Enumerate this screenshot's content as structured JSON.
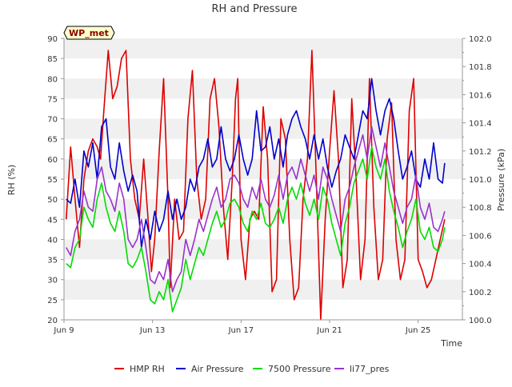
{
  "chart_data": {
    "type": "line",
    "title": "RH and Pressure",
    "badge": "WP_met",
    "xlabel": "Time",
    "ylabel_left": "RH (%)",
    "ylabel_right": "Pressure (kPa)",
    "xlim": [
      0.0,
      18.0
    ],
    "ylim_left": [
      20,
      90
    ],
    "ylim_right": [
      100.0,
      102.0
    ],
    "x_ticks": [
      {
        "value": 0,
        "label": "Jun 9"
      },
      {
        "value": 4,
        "label": "Jun 13"
      },
      {
        "value": 8,
        "label": "Jun 17"
      },
      {
        "value": 12,
        "label": "Jun 21"
      },
      {
        "value": 16,
        "label": "Jun 25"
      }
    ],
    "y_ticks_left": [
      20,
      25,
      30,
      35,
      40,
      45,
      50,
      55,
      60,
      65,
      70,
      75,
      80,
      85,
      90
    ],
    "y_ticks_right": [
      {
        "value": 100.0,
        "label": "100.0"
      },
      {
        "value": 100.2,
        "label": "100.2"
      },
      {
        "value": 100.4,
        "label": "100.4"
      },
      {
        "value": 100.6,
        "label": "100.6"
      },
      {
        "value": 100.8,
        "label": "100.8"
      },
      {
        "value": 101.0,
        "label": "101.0"
      },
      {
        "value": 101.2,
        "label": "101.2"
      },
      {
        "value": 101.4,
        "label": "101.4"
      },
      {
        "value": 101.6,
        "label": "101.6"
      },
      {
        "value": 101.8,
        "label": "101.8"
      },
      {
        "value": 102.0,
        "label": "102.0"
      }
    ],
    "grid": "horizontal bands",
    "legend_position": "bottom",
    "series": [
      {
        "name": "HMP RH",
        "color": "#dd0000",
        "axis": "left",
        "x": [
          0.1,
          0.3,
          0.5,
          0.7,
          0.9,
          1.1,
          1.3,
          1.5,
          1.65,
          1.8,
          2.0,
          2.2,
          2.4,
          2.6,
          2.8,
          3.0,
          3.2,
          3.4,
          3.6,
          3.8,
          3.95,
          4.1,
          4.3,
          4.5,
          4.7,
          4.8,
          5.0,
          5.2,
          5.4,
          5.6,
          5.8,
          6.0,
          6.2,
          6.4,
          6.6,
          6.8,
          7.0,
          7.2,
          7.4,
          7.6,
          7.75,
          7.85,
          8.0,
          8.2,
          8.4,
          8.6,
          8.8,
          9.0,
          9.2,
          9.4,
          9.6,
          9.8,
          10.0,
          10.2,
          10.4,
          10.6,
          10.8,
          11.0,
          11.2,
          11.4,
          11.6,
          11.8,
          12.0,
          12.2,
          12.4,
          12.6,
          12.8,
          13.0,
          13.2,
          13.4,
          13.6,
          13.8,
          14.0,
          14.2,
          14.4,
          14.6,
          14.8,
          15.0,
          15.2,
          15.4,
          15.6,
          15.8,
          16.0,
          16.2,
          16.4,
          16.6,
          16.8,
          17.0,
          17.2
        ],
        "y": [
          45,
          63,
          50,
          38,
          55,
          62,
          65,
          63,
          60,
          72,
          87,
          75,
          78,
          85,
          87,
          60,
          50,
          45,
          60,
          45,
          32,
          40,
          62,
          80,
          50,
          28,
          50,
          40,
          42,
          70,
          82,
          55,
          45,
          50,
          75,
          80,
          68,
          48,
          35,
          55,
          75,
          80,
          40,
          30,
          45,
          47,
          45,
          73,
          60,
          27,
          30,
          70,
          65,
          40,
          25,
          28,
          50,
          60,
          87,
          55,
          20,
          45,
          62,
          77,
          60,
          28,
          35,
          75,
          55,
          30,
          40,
          80,
          48,
          30,
          35,
          65,
          74,
          40,
          30,
          35,
          72,
          80,
          35,
          32,
          28,
          30,
          35,
          40,
          45
        ]
      },
      {
        "name": "Air Pressure",
        "color": "#0000cc",
        "axis": "left",
        "x": [
          0.1,
          0.3,
          0.5,
          0.7,
          0.9,
          1.1,
          1.3,
          1.5,
          1.7,
          1.9,
          2.1,
          2.3,
          2.5,
          2.7,
          2.9,
          3.1,
          3.3,
          3.5,
          3.7,
          3.9,
          4.1,
          4.3,
          4.5,
          4.7,
          4.9,
          5.1,
          5.3,
          5.5,
          5.7,
          5.9,
          6.1,
          6.3,
          6.5,
          6.7,
          6.9,
          7.1,
          7.3,
          7.5,
          7.7,
          7.9,
          8.1,
          8.3,
          8.5,
          8.7,
          8.9,
          9.1,
          9.3,
          9.5,
          9.7,
          9.9,
          10.1,
          10.3,
          10.5,
          10.7,
          10.9,
          11.1,
          11.3,
          11.5,
          11.7,
          11.9,
          12.1,
          12.3,
          12.5,
          12.7,
          12.9,
          13.1,
          13.3,
          13.5,
          13.7,
          13.9,
          14.1,
          14.3,
          14.5,
          14.7,
          14.9,
          15.1,
          15.3,
          15.5,
          15.7,
          15.9,
          16.1,
          16.3,
          16.5,
          16.7,
          16.9,
          17.1,
          17.2
        ],
        "y": [
          50,
          49,
          55,
          48,
          62,
          58,
          64,
          55,
          68,
          70,
          58,
          55,
          64,
          57,
          52,
          56,
          52,
          38,
          45,
          40,
          47,
          42,
          45,
          52,
          45,
          50,
          45,
          48,
          55,
          52,
          58,
          60,
          65,
          58,
          60,
          68,
          60,
          57,
          60,
          66,
          60,
          56,
          60,
          72,
          62,
          63,
          68,
          60,
          65,
          58,
          66,
          70,
          72,
          68,
          65,
          60,
          66,
          60,
          65,
          58,
          53,
          57,
          60,
          66,
          63,
          60,
          66,
          72,
          70,
          80,
          72,
          66,
          72,
          75,
          70,
          62,
          55,
          58,
          62,
          55,
          53,
          60,
          55,
          64,
          55,
          54,
          59
        ]
      },
      {
        "name": "7500 Pressure",
        "color": "#00dd00",
        "axis": "left",
        "x": [
          0.1,
          0.3,
          0.5,
          0.7,
          0.9,
          1.1,
          1.3,
          1.5,
          1.7,
          1.9,
          2.1,
          2.3,
          2.5,
          2.7,
          2.9,
          3.1,
          3.3,
          3.5,
          3.7,
          3.9,
          4.1,
          4.3,
          4.5,
          4.7,
          4.9,
          5.1,
          5.3,
          5.5,
          5.7,
          5.9,
          6.1,
          6.3,
          6.5,
          6.7,
          6.9,
          7.1,
          7.3,
          7.5,
          7.7,
          7.9,
          8.1,
          8.3,
          8.5,
          8.7,
          8.9,
          9.1,
          9.3,
          9.5,
          9.7,
          9.9,
          10.1,
          10.3,
          10.5,
          10.7,
          10.9,
          11.1,
          11.3,
          11.5,
          11.7,
          11.9,
          12.1,
          12.3,
          12.5,
          12.7,
          12.9,
          13.1,
          13.3,
          13.5,
          13.7,
          13.9,
          14.1,
          14.3,
          14.5,
          14.7,
          14.9,
          15.1,
          15.3,
          15.5,
          15.7,
          15.9,
          16.1,
          16.3,
          16.5,
          16.7,
          16.9,
          17.1,
          17.2
        ],
        "y": [
          34,
          33,
          38,
          40,
          48,
          45,
          43,
          50,
          54,
          48,
          44,
          42,
          47,
          42,
          34,
          33,
          35,
          38,
          32,
          25,
          24,
          27,
          25,
          30,
          22,
          25,
          28,
          35,
          30,
          34,
          38,
          36,
          40,
          44,
          47,
          43,
          45,
          49,
          50,
          48,
          44,
          42,
          47,
          45,
          49,
          44,
          43,
          45,
          48,
          44,
          50,
          53,
          50,
          54,
          49,
          46,
          50,
          45,
          53,
          50,
          44,
          40,
          36,
          44,
          48,
          54,
          57,
          60,
          55,
          63,
          58,
          55,
          60,
          52,
          47,
          43,
          38,
          42,
          45,
          50,
          42,
          40,
          43,
          38,
          37,
          40,
          43
        ]
      },
      {
        "name": "li77_pres",
        "color": "#9933cc",
        "axis": "left",
        "x": [
          0.1,
          0.3,
          0.5,
          0.7,
          0.9,
          1.1,
          1.3,
          1.5,
          1.7,
          1.9,
          2.1,
          2.3,
          2.5,
          2.7,
          2.9,
          3.1,
          3.3,
          3.5,
          3.7,
          3.9,
          4.1,
          4.3,
          4.5,
          4.7,
          4.9,
          5.1,
          5.3,
          5.5,
          5.7,
          5.9,
          6.1,
          6.3,
          6.5,
          6.7,
          6.9,
          7.1,
          7.3,
          7.5,
          7.7,
          7.9,
          8.1,
          8.3,
          8.5,
          8.7,
          8.9,
          9.1,
          9.3,
          9.5,
          9.7,
          9.9,
          10.1,
          10.3,
          10.5,
          10.7,
          10.9,
          11.1,
          11.3,
          11.5,
          11.7,
          11.9,
          12.1,
          12.3,
          12.5,
          12.7,
          12.9,
          13.1,
          13.3,
          13.5,
          13.7,
          13.9,
          14.1,
          14.3,
          14.5,
          14.7,
          14.9,
          15.1,
          15.3,
          15.5,
          15.7,
          15.9,
          16.1,
          16.3,
          16.5,
          16.7,
          16.9,
          17.1,
          17.2
        ],
        "y": [
          38,
          36,
          42,
          45,
          52,
          48,
          47,
          55,
          58,
          52,
          50,
          47,
          54,
          50,
          40,
          38,
          40,
          45,
          38,
          30,
          29,
          32,
          30,
          35,
          27,
          30,
          32,
          40,
          36,
          40,
          45,
          42,
          46,
          50,
          53,
          48,
          50,
          55,
          56,
          54,
          50,
          48,
          53,
          50,
          55,
          50,
          48,
          51,
          56,
          50,
          56,
          58,
          55,
          60,
          56,
          52,
          56,
          50,
          58,
          55,
          50,
          46,
          42,
          50,
          53,
          58,
          62,
          66,
          60,
          68,
          63,
          58,
          64,
          58,
          52,
          48,
          44,
          48,
          50,
          56,
          48,
          45,
          49,
          43,
          42,
          45,
          47
        ]
      }
    ]
  }
}
